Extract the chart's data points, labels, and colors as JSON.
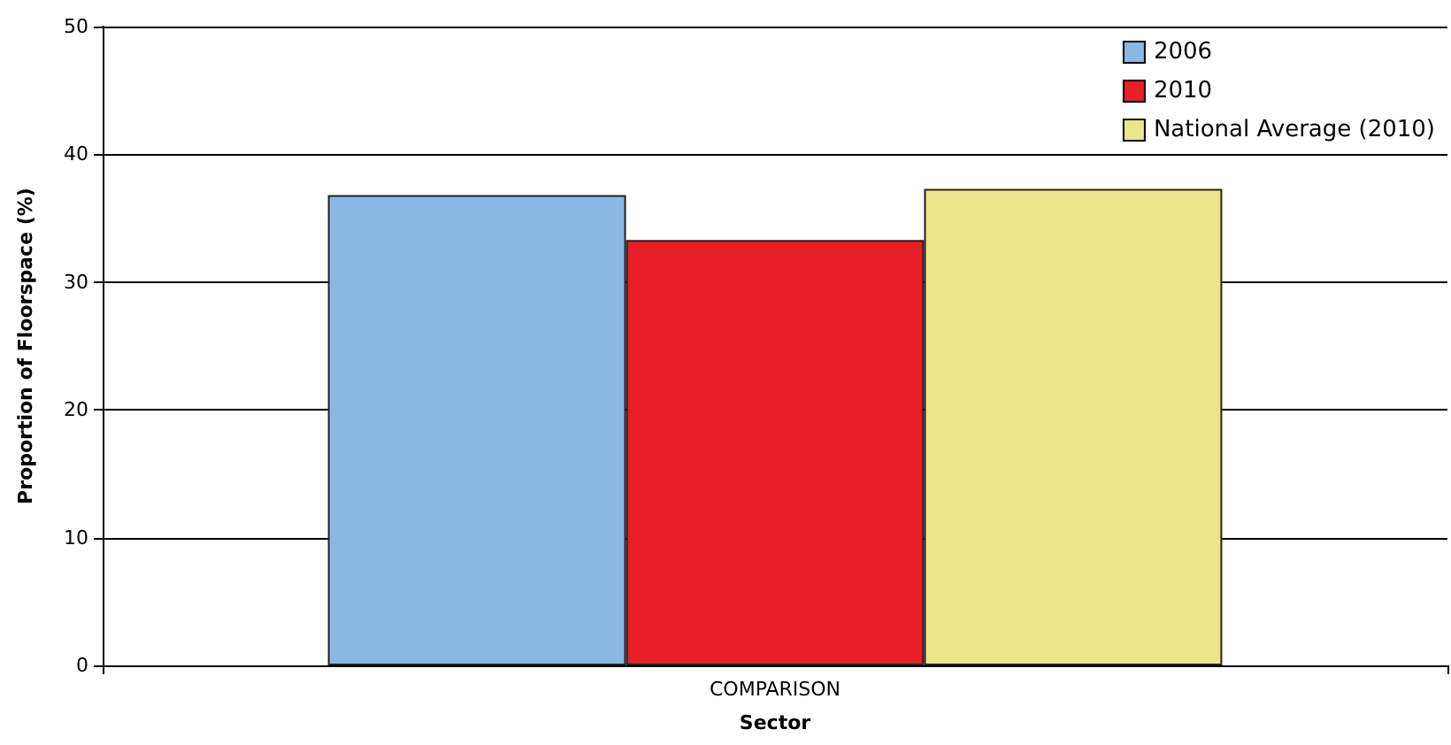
{
  "chart_data": {
    "type": "bar",
    "xlabel": "Sector",
    "ylabel": "Proportion of Floorspace (%)",
    "categories": [
      "COMPARISON"
    ],
    "series": [
      {
        "name": "2006",
        "color": "#8ab8e4",
        "values": [
          36.8
        ]
      },
      {
        "name": "2010",
        "color": "#e81e26",
        "values": [
          33.3
        ]
      },
      {
        "name": "National Average (2010)",
        "color": "#ebe68a",
        "values": [
          37.3
        ]
      }
    ],
    "ylim": [
      0,
      50
    ],
    "yticks": [
      0,
      10,
      20,
      30,
      40,
      50
    ],
    "grid": "y",
    "legend": "top right"
  }
}
